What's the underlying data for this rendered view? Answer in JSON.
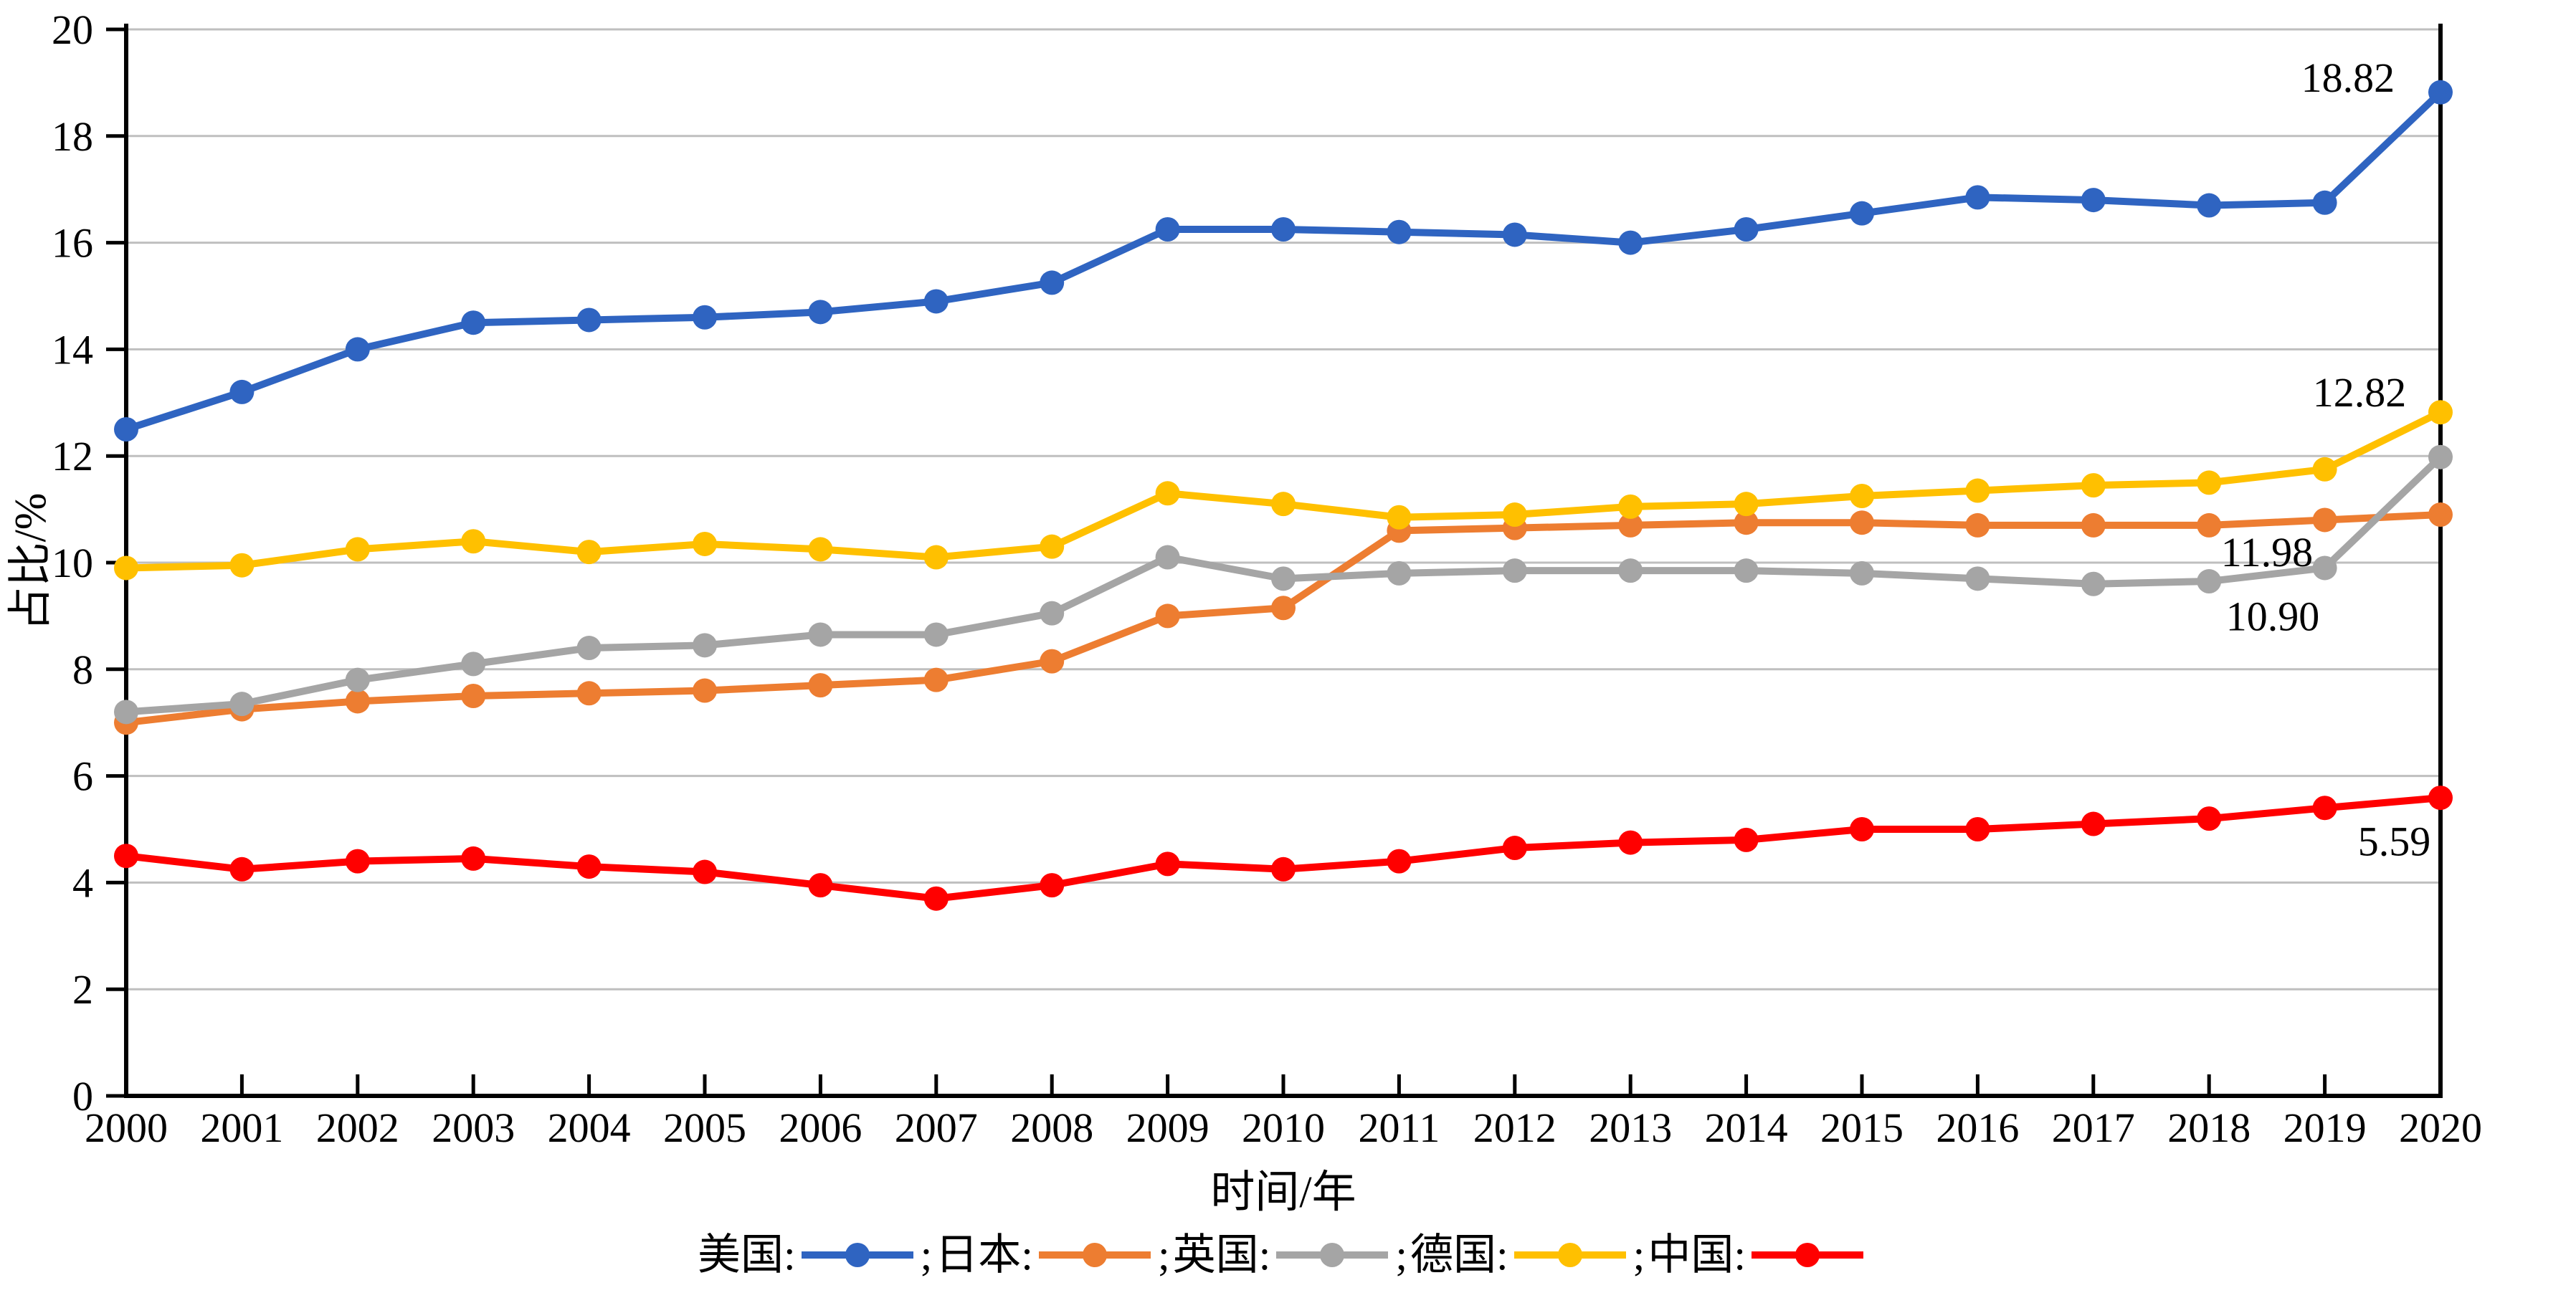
{
  "chart_data": {
    "type": "line",
    "title": "",
    "xlabel": "时间/年",
    "ylabel": "占比/%",
    "x": [
      2000,
      2001,
      2002,
      2003,
      2004,
      2005,
      2006,
      2007,
      2008,
      2009,
      2010,
      2011,
      2012,
      2013,
      2014,
      2015,
      2016,
      2017,
      2018,
      2019,
      2020
    ],
    "ylim": [
      0,
      20
    ],
    "ytick_step": 2,
    "grid": "horizontal",
    "legend_position": "bottom",
    "legend_colon": ":",
    "legend_separator": ";",
    "axis_color": "#000000",
    "gridline_color": "#bfbfbf",
    "series": [
      {
        "key": "usa",
        "name": "美国",
        "color": "#2f64c1",
        "values": [
          12.5,
          13.2,
          14.0,
          14.5,
          14.55,
          14.6,
          14.7,
          14.9,
          15.25,
          16.25,
          16.25,
          16.2,
          16.15,
          16.0,
          16.25,
          16.55,
          16.85,
          16.8,
          16.7,
          16.75,
          18.82
        ]
      },
      {
        "key": "japan",
        "name": "日本",
        "color": "#ed7d31",
        "values": [
          7.0,
          7.25,
          7.4,
          7.5,
          7.55,
          7.6,
          7.7,
          7.8,
          8.15,
          9.0,
          9.15,
          10.6,
          10.65,
          10.7,
          10.75,
          10.75,
          10.7,
          10.7,
          10.7,
          10.8,
          10.9
        ]
      },
      {
        "key": "uk",
        "name": "英国",
        "color": "#a5a5a5",
        "values": [
          7.2,
          7.35,
          7.8,
          8.1,
          8.4,
          8.45,
          8.65,
          8.65,
          9.05,
          10.1,
          9.7,
          9.8,
          9.85,
          9.85,
          9.85,
          9.8,
          9.7,
          9.6,
          9.65,
          9.9,
          11.98
        ]
      },
      {
        "key": "germany",
        "name": "德国",
        "color": "#ffc000",
        "values": [
          9.9,
          9.95,
          10.25,
          10.4,
          10.2,
          10.35,
          10.25,
          10.1,
          10.3,
          11.3,
          11.1,
          10.85,
          10.9,
          11.05,
          11.1,
          11.25,
          11.35,
          11.45,
          11.5,
          11.75,
          12.82
        ]
      },
      {
        "key": "china",
        "name": "中国",
        "color": "#ff0000",
        "values": [
          4.5,
          4.25,
          4.4,
          4.45,
          4.3,
          4.2,
          3.95,
          3.7,
          3.95,
          4.35,
          4.25,
          4.4,
          4.65,
          4.75,
          4.8,
          5.0,
          5.0,
          5.1,
          5.2,
          5.4,
          5.59
        ]
      }
    ],
    "annotations": [
      {
        "text": "18.82",
        "x": 2019.2,
        "y": 19.1
      },
      {
        "text": "12.82",
        "x": 2019.3,
        "y": 13.2
      },
      {
        "text": "11.98",
        "x": 2018.5,
        "y": 10.2
      },
      {
        "text": "10.90",
        "x": 2018.55,
        "y": 9.0
      },
      {
        "text": "5.59",
        "x": 2019.6,
        "y": 4.78
      }
    ]
  }
}
